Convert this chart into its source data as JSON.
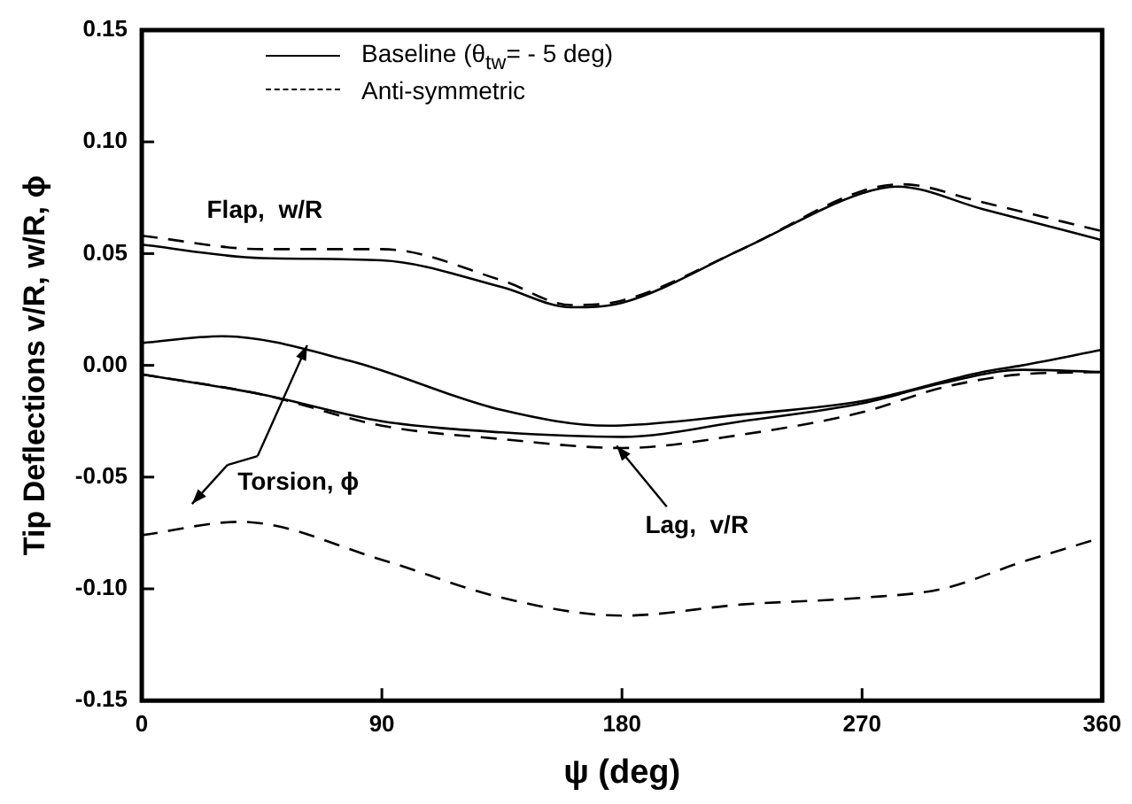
{
  "chart_data": {
    "type": "line",
    "xlabel": "ψ (deg)",
    "ylabel": "Tip Deflections v/R, w/R, ϕ",
    "xlim": [
      0,
      360
    ],
    "xticks": [
      0,
      90,
      180,
      270,
      360
    ],
    "ylim": [
      -0.15,
      0.15
    ],
    "yticks": [
      {
        "value": -0.15,
        "label": "-0.15"
      },
      {
        "value": -0.1,
        "label": "-0.10"
      },
      {
        "value": -0.05,
        "label": "-0.05"
      },
      {
        "value": 0,
        "label": "0.00"
      },
      {
        "value": 0.05,
        "label": "0.05"
      },
      {
        "value": 0.1,
        "label": "0.10"
      },
      {
        "value": 0.15,
        "label": "0.15"
      }
    ],
    "grid": false,
    "legend": "top left",
    "marker": "none",
    "annotations": [
      "Flap,  w/R",
      {
        "text": "Torsion, ϕ",
        "x": 62,
        "y": 0.009
      },
      {
        "text": "Lag,  v/R",
        "x": 178,
        "y": -0.036
      }
    ],
    "series": [
      {
        "name": "Baseline (θ$_{tw}$= - 5 deg)",
        "color": "#000000",
        "line_style": "solid",
        "x": [
          0,
          45,
          90,
          135,
          161,
          180,
          225,
          270,
          283,
          315,
          360
        ],
        "values": [
          0.054,
          0.048,
          0.047,
          0.035,
          0.026,
          0.028,
          0.052,
          0.077,
          0.08,
          0.07,
          0.056
        ]
      },
      {
        "name": "Anti-symmetric",
        "color": "#000000",
        "line_style": "dashed",
        "x": [
          0,
          45,
          90,
          135,
          161,
          180,
          225,
          270,
          285,
          315,
          360
        ],
        "values": [
          0.058,
          0.052,
          0.052,
          0.038,
          0.027,
          0.029,
          0.052,
          0.078,
          0.081,
          0.073,
          0.06
        ]
      },
      {
        "color": "#000000",
        "line_style": "solid",
        "x": [
          0,
          30,
          78,
          135,
          175,
          225,
          270,
          315,
          330,
          360
        ],
        "values": [
          0.01,
          0.013,
          0.002,
          -0.02,
          -0.027,
          -0.022,
          -0.016,
          -0.003,
          0.0,
          0.007
        ]
      },
      {
        "color": "#000000",
        "line_style": "dashed",
        "x": [
          0,
          37,
          90,
          135,
          180,
          225,
          270,
          300,
          330,
          360
        ],
        "values": [
          -0.076,
          -0.07,
          -0.087,
          -0.104,
          -0.112,
          -0.107,
          -0.104,
          -0.1,
          -0.088,
          -0.077
        ]
      },
      {
        "color": "#000000",
        "line_style": "solid",
        "x": [
          0,
          45,
          90,
          135,
          180,
          225,
          270,
          300,
          330,
          360
        ],
        "values": [
          -0.004,
          -0.013,
          -0.025,
          -0.03,
          -0.032,
          -0.025,
          -0.017,
          -0.008,
          -0.002,
          -0.003
        ]
      },
      {
        "color": "#000000",
        "line_style": "dashed",
        "x": [
          0,
          45,
          90,
          135,
          180,
          225,
          270,
          300,
          330,
          360
        ],
        "values": [
          -0.004,
          -0.013,
          -0.027,
          -0.033,
          -0.037,
          -0.031,
          -0.021,
          -0.01,
          -0.004,
          -0.003
        ]
      }
    ]
  }
}
